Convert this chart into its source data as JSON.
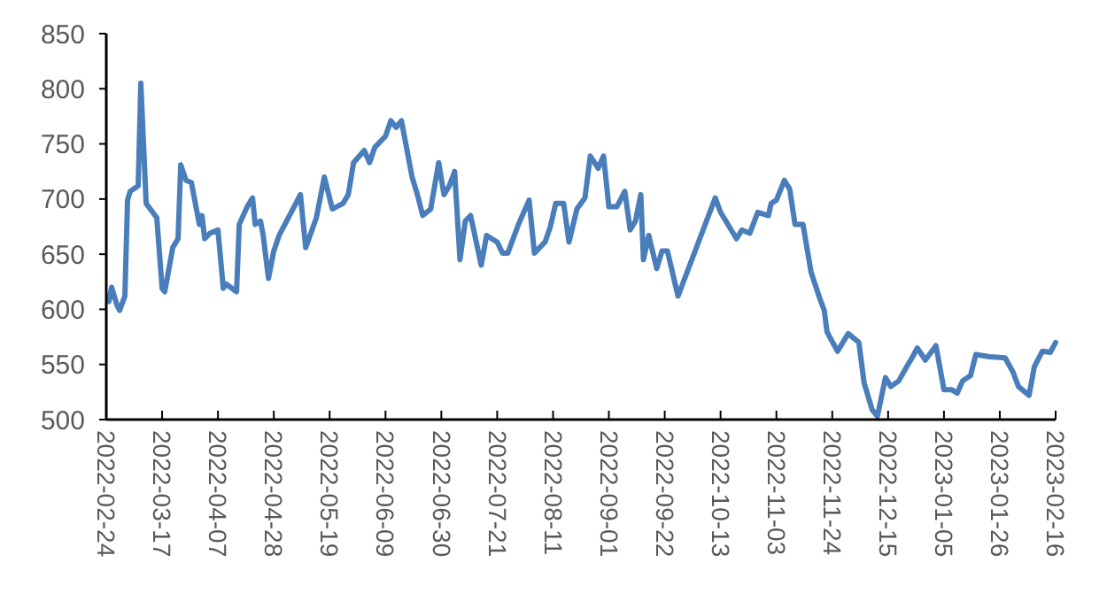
{
  "chart_data": {
    "type": "line",
    "xlim": [
      "2022-02-24",
      "2023-02-16"
    ],
    "xticks": [
      "2022-02-24",
      "2022-03-17",
      "2022-04-07",
      "2022-04-28",
      "2022-05-19",
      "2022-06-09",
      "2022-06-30",
      "2022-07-21",
      "2022-08-11",
      "2022-09-01",
      "2022-09-22",
      "2022-10-13",
      "2022-11-03",
      "2022-11-24",
      "2022-12-15",
      "2023-01-05",
      "2023-01-26",
      "2023-02-16"
    ],
    "ylim": [
      500,
      850
    ],
    "yticks": [
      500,
      550,
      600,
      650,
      700,
      750,
      800,
      850
    ],
    "grid": false,
    "marker": "none",
    "line_style": "solid",
    "series": [
      {
        "color": "#4a7ebb",
        "x": [
          "2022-02-25",
          "2022-02-26",
          "2022-02-28",
          "2022-03-01",
          "2022-03-03",
          "2022-03-04",
          "2022-03-05",
          "2022-03-08",
          "2022-03-09",
          "2022-03-11",
          "2022-03-15",
          "2022-03-17",
          "2022-03-18",
          "2022-03-21",
          "2022-03-23",
          "2022-03-24",
          "2022-03-26",
          "2022-03-28",
          "2022-03-31",
          "2022-04-01",
          "2022-04-02",
          "2022-04-04",
          "2022-04-07",
          "2022-04-09",
          "2022-04-10",
          "2022-04-14",
          "2022-04-15",
          "2022-04-18",
          "2022-04-20",
          "2022-04-21",
          "2022-04-23",
          "2022-04-24",
          "2022-04-26",
          "2022-04-28",
          "2022-04-30",
          "2022-05-08",
          "2022-05-10",
          "2022-05-14",
          "2022-05-17",
          "2022-05-20",
          "2022-05-24",
          "2022-05-26",
          "2022-05-28",
          "2022-06-01",
          "2022-06-03",
          "2022-06-05",
          "2022-06-09",
          "2022-06-11",
          "2022-06-13",
          "2022-06-15",
          "2022-06-19",
          "2022-06-21",
          "2022-06-23",
          "2022-06-26",
          "2022-06-29",
          "2022-07-01",
          "2022-07-03",
          "2022-07-05",
          "2022-07-07",
          "2022-07-09",
          "2022-07-11",
          "2022-07-15",
          "2022-07-17",
          "2022-07-21",
          "2022-07-23",
          "2022-07-25",
          "2022-07-29",
          "2022-08-02",
          "2022-08-04",
          "2022-08-08",
          "2022-08-10",
          "2022-08-12",
          "2022-08-15",
          "2022-08-17",
          "2022-08-20",
          "2022-08-23",
          "2022-08-25",
          "2022-08-28",
          "2022-08-30",
          "2022-09-01",
          "2022-09-04",
          "2022-09-07",
          "2022-09-09",
          "2022-09-11",
          "2022-09-13",
          "2022-09-14",
          "2022-09-16",
          "2022-09-19",
          "2022-09-21",
          "2022-09-23",
          "2022-09-27",
          "2022-10-11",
          "2022-10-13",
          "2022-10-17",
          "2022-10-19",
          "2022-10-21",
          "2022-10-24",
          "2022-10-27",
          "2022-10-31",
          "2022-11-01",
          "2022-11-03",
          "2022-11-06",
          "2022-11-08",
          "2022-11-10",
          "2022-11-13",
          "2022-11-16",
          "2022-11-19",
          "2022-11-21",
          "2022-11-22",
          "2022-11-23",
          "2022-11-26",
          "2022-11-30",
          "2022-12-04",
          "2022-12-06",
          "2022-12-09",
          "2022-12-11",
          "2022-12-14",
          "2022-12-16",
          "2022-12-19",
          "2022-12-22",
          "2022-12-24",
          "2022-12-26",
          "2022-12-29",
          "2023-01-02",
          "2023-01-05",
          "2023-01-08",
          "2023-01-10",
          "2023-01-12",
          "2023-01-15",
          "2023-01-17",
          "2023-01-22",
          "2023-01-28",
          "2023-01-31",
          "2023-02-02",
          "2023-02-06",
          "2023-02-08",
          "2023-02-11",
          "2023-02-14",
          "2023-02-16"
        ],
        "values": [
          607,
          620,
          604,
          599,
          612,
          699,
          707,
          712,
          805,
          696,
          683,
          619,
          616,
          656,
          664,
          731,
          717,
          715,
          677,
          685,
          664,
          669,
          672,
          619,
          623,
          616,
          677,
          693,
          701,
          677,
          680,
          667,
          628,
          653,
          667,
          704,
          656,
          683,
          720,
          691,
          696,
          704,
          733,
          744,
          733,
          747,
          757,
          771,
          765,
          771,
          720,
          704,
          685,
          691,
          733,
          704,
          712,
          725,
          645,
          680,
          685,
          640,
          667,
          661,
          651,
          651,
          677,
          699,
          651,
          661,
          675,
          696,
          696,
          661,
          691,
          701,
          739,
          728,
          739,
          693,
          693,
          707,
          672,
          680,
          704,
          645,
          667,
          637,
          653,
          653,
          612,
          701,
          688,
          672,
          664,
          672,
          669,
          688,
          685,
          696,
          699,
          717,
          709,
          677,
          677,
          634,
          612,
          599,
          580,
          575,
          562,
          578,
          570,
          533,
          509,
          503,
          538,
          530,
          535,
          548,
          556,
          565,
          554,
          567,
          527,
          527,
          524,
          535,
          540,
          559,
          557,
          556,
          543,
          530,
          522,
          548,
          562,
          561,
          570
        ]
      }
    ]
  }
}
